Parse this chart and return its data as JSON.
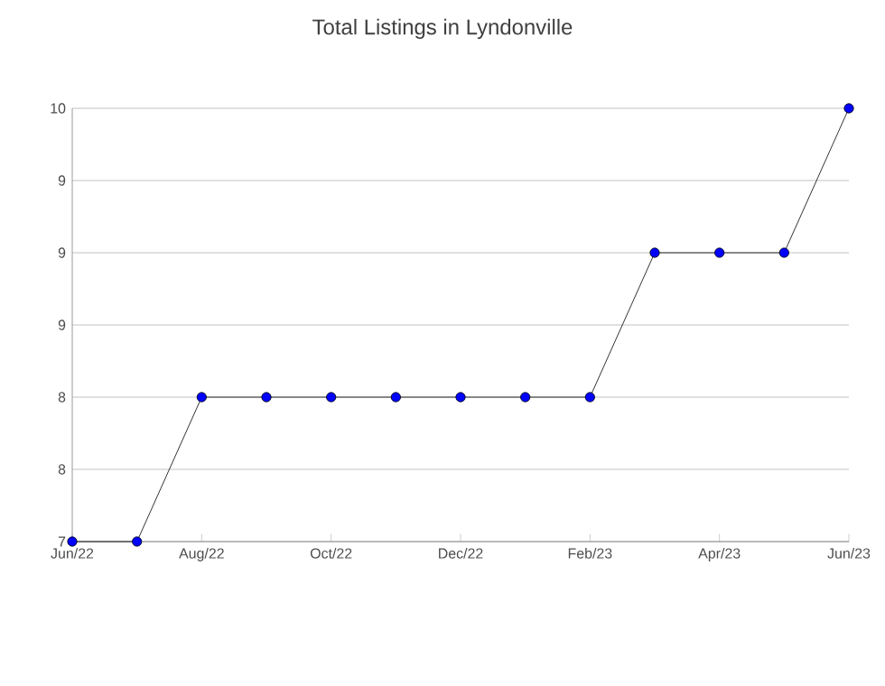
{
  "chart_data": {
    "type": "line",
    "title": "Total Listings in Lyndonville",
    "x": [
      "2022-06",
      "2022-07",
      "2022-08",
      "2022-09",
      "2022-10",
      "2022-11",
      "2022-12",
      "2023-01",
      "2023-02",
      "2023-03",
      "2023-04",
      "2023-05",
      "2023-06"
    ],
    "series": [
      {
        "color": "#0000ff",
        "values": [
          7,
          7,
          8,
          8,
          8,
          8,
          8,
          8,
          8,
          9,
          9,
          9,
          10
        ]
      }
    ],
    "xlim": [
      "2022-06",
      "2023-06"
    ],
    "xticks": [
      {
        "value": "2022-06",
        "label": "Jun/22"
      },
      {
        "value": "2022-08",
        "label": "Aug/22"
      },
      {
        "value": "2022-10",
        "label": "Oct/22"
      },
      {
        "value": "2022-12",
        "label": "Dec/22"
      },
      {
        "value": "2023-02",
        "label": "Feb/23"
      },
      {
        "value": "2023-04",
        "label": "Apr/23"
      },
      {
        "value": "2023-06",
        "label": "Jun/23"
      }
    ],
    "ylim": [
      7,
      10
    ],
    "yticks": [
      {
        "value": 7,
        "label": "7"
      },
      {
        "value": 7.5,
        "label": "8"
      },
      {
        "value": 8,
        "label": "8"
      },
      {
        "value": 8.5,
        "label": "9"
      },
      {
        "value": 9,
        "label": "9"
      },
      {
        "value": 9.5,
        "label": "9"
      },
      {
        "value": 10,
        "label": "10"
      }
    ],
    "grid": "y",
    "marker": "circle",
    "line_style": "solid"
  }
}
